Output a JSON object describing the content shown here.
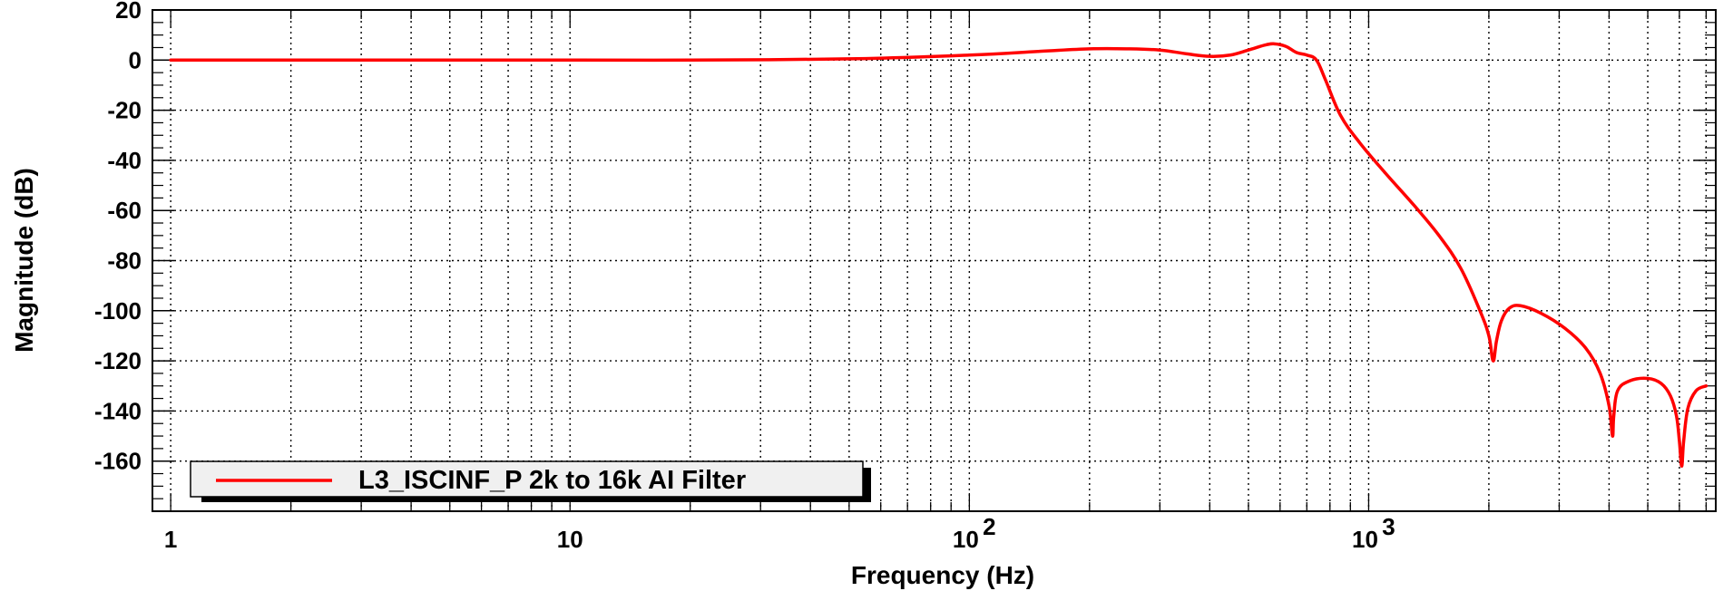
{
  "chart_data": {
    "type": "line",
    "title": "",
    "xlabel": "Frequency (Hz)",
    "ylabel": "Magnitude (dB)",
    "x_scale": "log",
    "xlim": [
      0.9,
      7400
    ],
    "ylim": [
      -180,
      20
    ],
    "yticks": [
      20,
      0,
      -20,
      -40,
      -60,
      -80,
      -100,
      -120,
      -140,
      -160
    ],
    "xticks": [
      {
        "value": 1,
        "label": "1"
      },
      {
        "value": 10,
        "label": "10"
      },
      {
        "value": 100,
        "base": "10",
        "exp": "2"
      },
      {
        "value": 1000,
        "base": "10",
        "exp": "3"
      }
    ],
    "grid": true,
    "legend_position": "bottom-left",
    "series": [
      {
        "name": "L3_ISCINF_P 2k to 16k AI Filter",
        "color": "#ff0000",
        "x": [
          1,
          10,
          20,
          50,
          100,
          150,
          200,
          250,
          300,
          350,
          400,
          450,
          500,
          550,
          580,
          620,
          660,
          700,
          740,
          780,
          850,
          950,
          1100,
          1300,
          1500,
          1700,
          1900,
          2000,
          2050,
          2090,
          2150,
          2250,
          2400,
          2700,
          3100,
          3500,
          3800,
          4000,
          4080,
          4110,
          4200,
          4500,
          5000,
          5400,
          5700,
          5900,
          6000,
          6080,
          6150,
          6300,
          6600,
          7000
        ],
        "y": [
          0,
          0,
          0,
          0.5,
          2,
          3.5,
          4.5,
          4.5,
          4,
          2.5,
          1.5,
          2,
          4,
          6,
          6.5,
          5.5,
          3,
          2,
          0,
          -8,
          -22,
          -33,
          -45,
          -58,
          -70,
          -83,
          -100,
          -110,
          -120,
          -112,
          -104,
          -99,
          -98,
          -101,
          -107,
          -115,
          -125,
          -138,
          -150,
          -142,
          -132,
          -128,
          -127,
          -129,
          -134,
          -142,
          -152,
          -162,
          -152,
          -139,
          -132,
          -130
        ]
      }
    ]
  }
}
